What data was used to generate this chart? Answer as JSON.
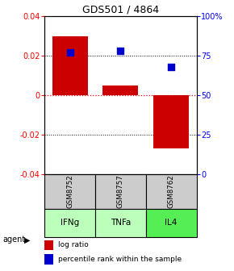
{
  "title": "GDS501 / 4864",
  "categories": [
    "IFNg",
    "TNFa",
    "IL4"
  ],
  "sample_names": [
    "GSM8752",
    "GSM8757",
    "GSM8762"
  ],
  "log_ratios": [
    0.03,
    0.005,
    -0.027
  ],
  "percentile_ranks": [
    77,
    78,
    68
  ],
  "bar_color": "#cc0000",
  "dot_color": "#0000cc",
  "ylim_left": [
    -0.04,
    0.04
  ],
  "yticks_left": [
    -0.04,
    -0.02,
    0,
    0.02,
    0.04
  ],
  "ytick_labels_left": [
    "-0.04",
    "-0.02",
    "0",
    "0.02",
    "0.04"
  ],
  "ytick_labels_right": [
    "0",
    "25",
    "50",
    "75",
    "100%"
  ],
  "sample_bg_color": "#cccccc",
  "agent_colors": [
    "#bbffbb",
    "#bbffbb",
    "#55ee55"
  ],
  "agent_label": "agent",
  "legend_items": [
    "log ratio",
    "percentile rank within the sample"
  ],
  "legend_colors": [
    "#cc0000",
    "#0000cc"
  ]
}
